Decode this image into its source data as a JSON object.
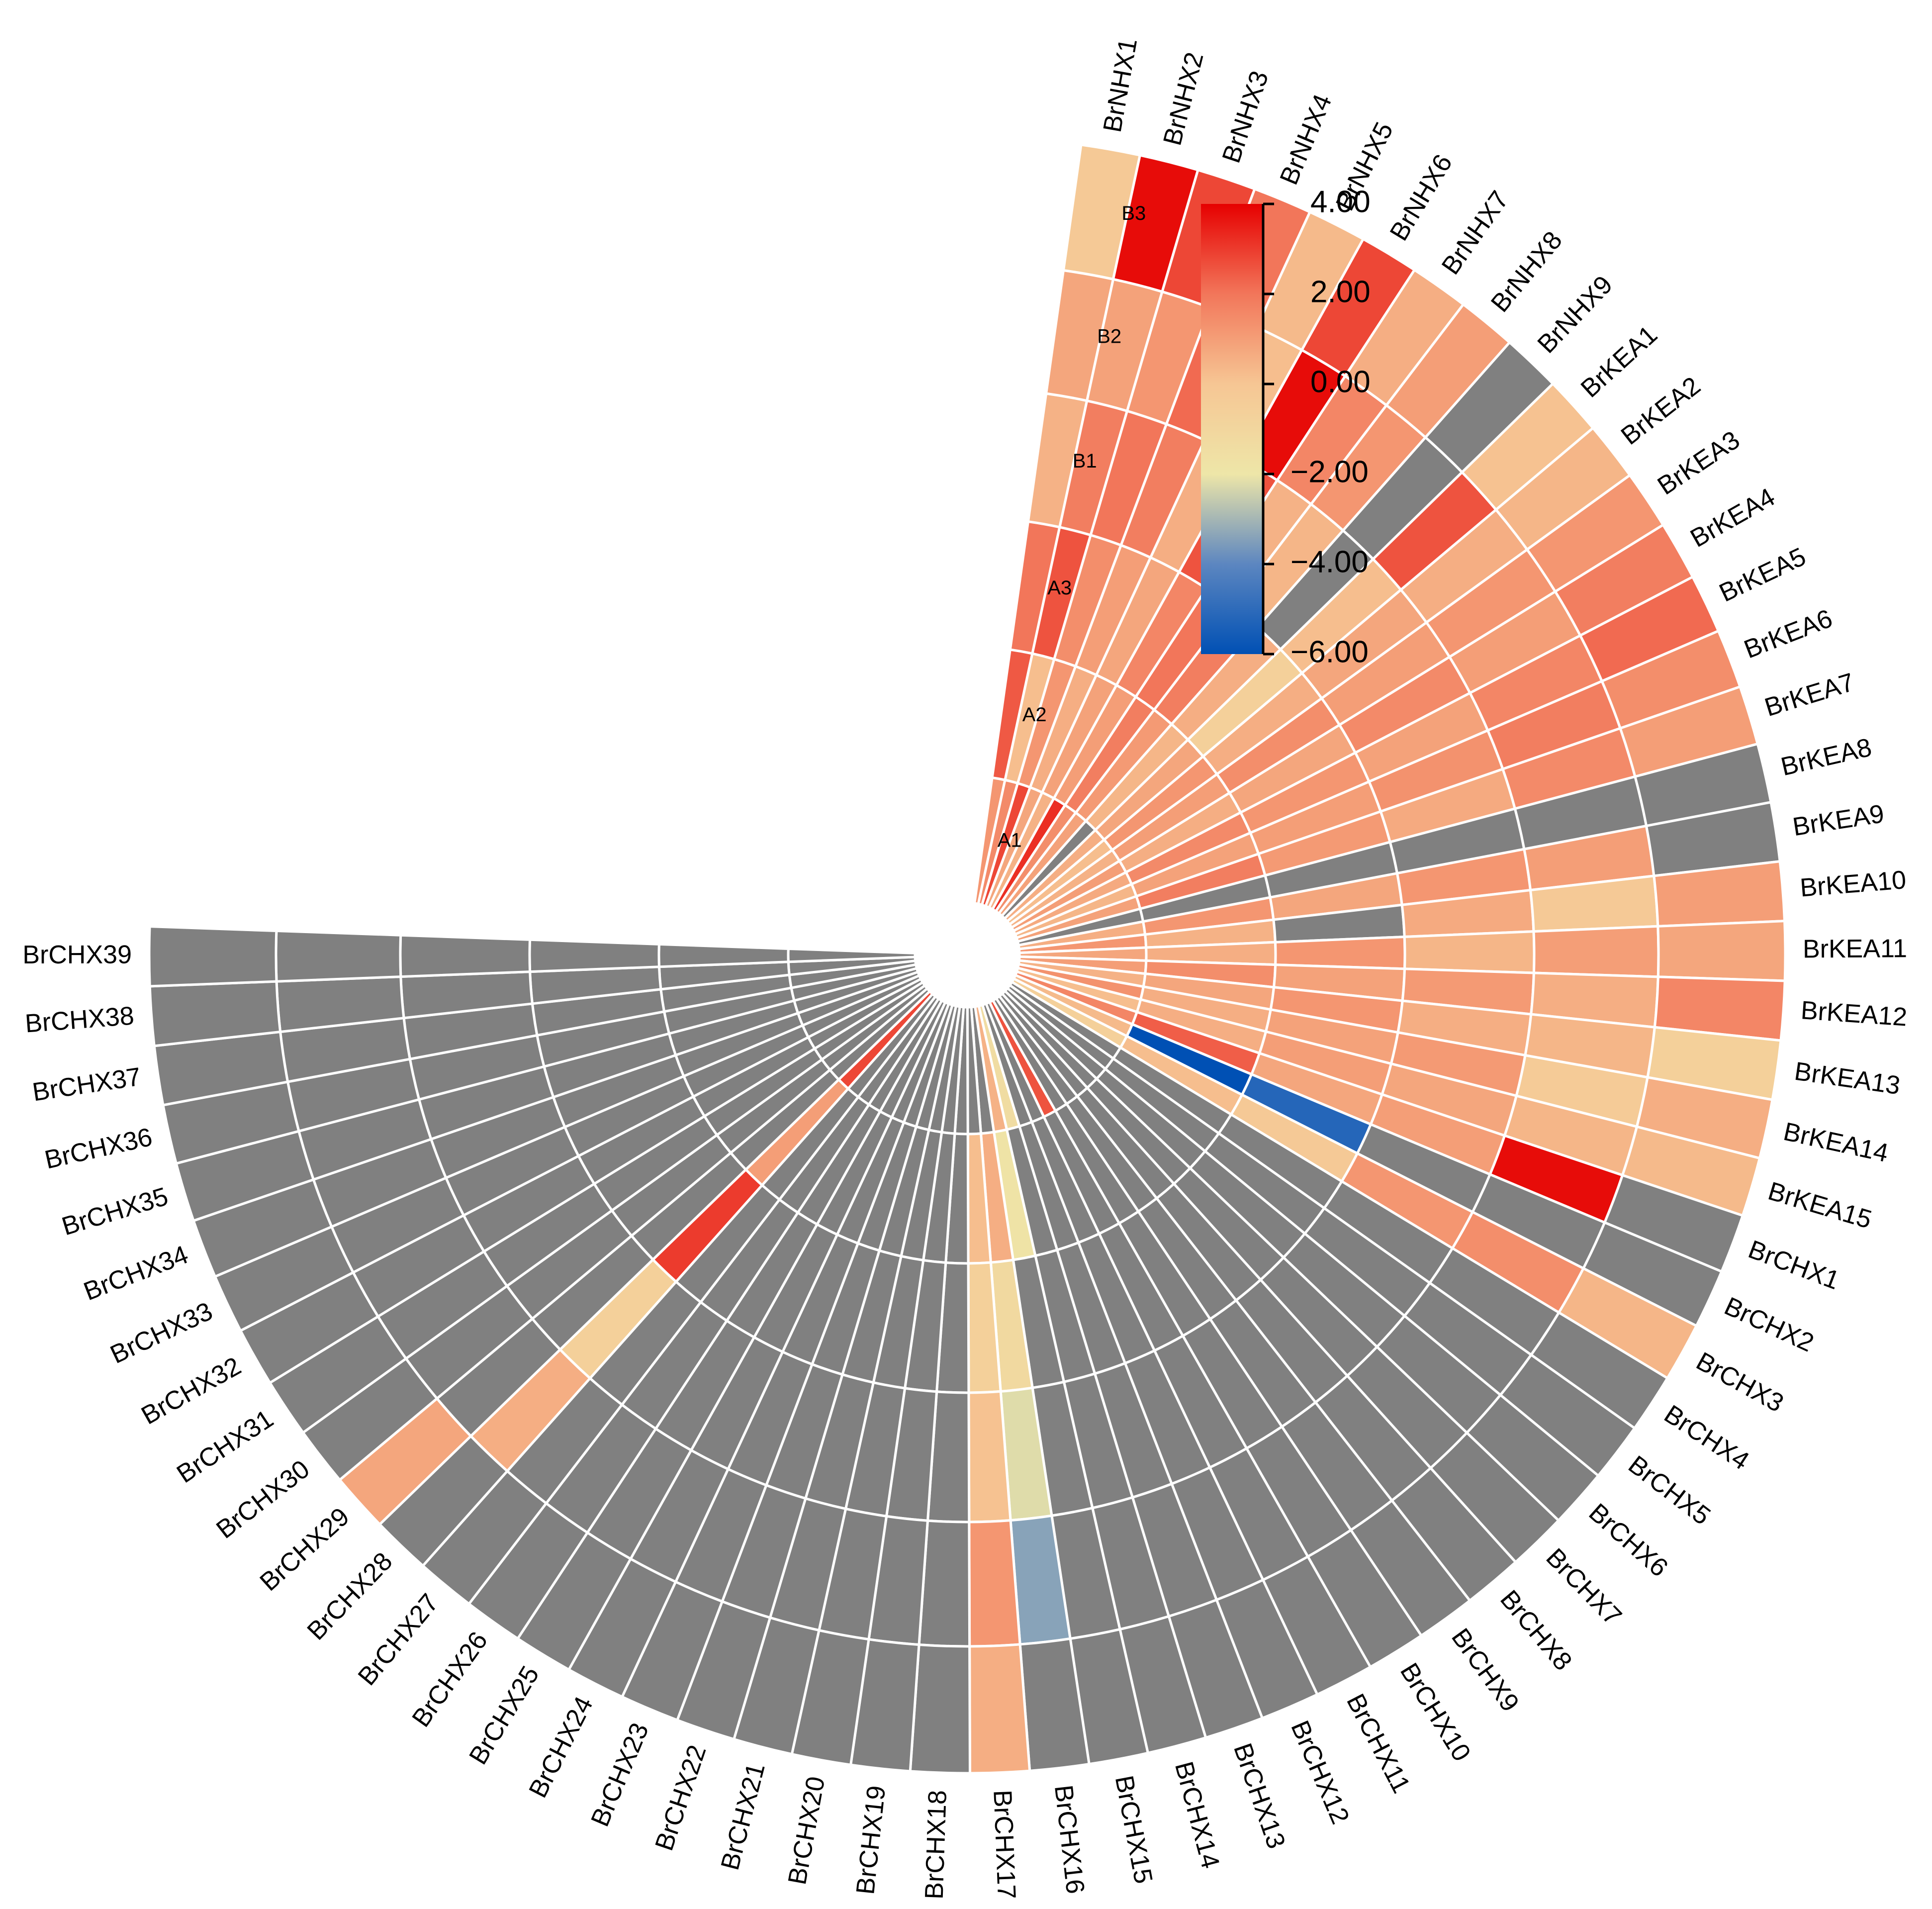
{
  "chart_data": {
    "type": "heatmap",
    "subtype": "circular",
    "title": "",
    "samples": [
      "A1",
      "A2",
      "A3",
      "B1",
      "B2",
      "B3"
    ],
    "genes": [
      "BrNHX1",
      "BrNHX2",
      "BrNHX3",
      "BrNHX4",
      "BrNHX5",
      "BrNHX6",
      "BrNHX7",
      "BrNHX8",
      "BrNHX9",
      "BrKEA1",
      "BrKEA2",
      "BrKEA3",
      "BrKEA4",
      "BrKEA5",
      "BrKEA6",
      "BrKEA7",
      "BrKEA8",
      "BrKEA9",
      "BrKEA10",
      "BrKEA11",
      "BrKEA12",
      "BrKEA13",
      "BrKEA14",
      "BrKEA15",
      "BrCHX1",
      "BrCHX2",
      "BrCHX3",
      "BrCHX4",
      "BrCHX5",
      "BrCHX6",
      "BrCHX7",
      "BrCHX8",
      "BrCHX9",
      "BrCHX10",
      "BrCHX11",
      "BrCHX12",
      "BrCHX13",
      "BrCHX14",
      "BrCHX15",
      "BrCHX16",
      "BrCHX17",
      "BrCHX18",
      "BrCHX19",
      "BrCHX20",
      "BrCHX21",
      "BrCHX22",
      "BrCHX23",
      "BrCHX24",
      "BrCHX25",
      "BrCHX26",
      "BrCHX27",
      "BrCHX28",
      "BrCHX29",
      "BrCHX30",
      "BrCHX31",
      "BrCHX32",
      "BrCHX33",
      "BrCHX34",
      "BrCHX35",
      "BrCHX36",
      "BrCHX37",
      "BrCHX38",
      "BrCHX39"
    ],
    "values_note": "values[g] = [A1, A2, A3, B1, B2, B3]; null = not detected (grey)",
    "values": [
      [
        1.2,
        2.5,
        2.0,
        0.5,
        0.8,
        -0.2
      ],
      [
        1.5,
        0.2,
        2.6,
        1.8,
        0.9,
        3.8
      ],
      [
        2.8,
        1.2,
        1.4,
        2.0,
        1.2,
        2.8
      ],
      [
        0.8,
        0.6,
        1.0,
        1.8,
        2.2,
        2.0
      ],
      [
        0.5,
        0.9,
        0.8,
        0.6,
        0.2,
        0.3
      ],
      [
        3.2,
        1.0,
        1.6,
        2.6,
        3.8,
        2.8
      ],
      [
        1.4,
        1.8,
        2.0,
        0.5,
        1.6,
        0.6
      ],
      [
        0.9,
        1.1,
        1.8,
        0.4,
        1.2,
        1.0
      ],
      [
        null,
        0.4,
        0.6,
        null,
        null,
        null
      ],
      [
        0.6,
        0.8,
        -0.6,
        0.2,
        2.6,
        0.1
      ],
      [
        0.2,
        1.2,
        0.6,
        0.8,
        0.6,
        0.4
      ],
      [
        0.5,
        1.0,
        1.4,
        1.0,
        1.2,
        1.2
      ],
      [
        1.0,
        0.6,
        0.8,
        1.5,
        1.0,
        1.8
      ],
      [
        0.7,
        1.5,
        1.2,
        0.9,
        1.6,
        2.2
      ],
      [
        0.4,
        0.9,
        1.0,
        1.3,
        1.8,
        1.4
      ],
      [
        0.9,
        1.8,
        1.1,
        0.7,
        1.5,
        1.0
      ],
      [
        null,
        null,
        null,
        null,
        null,
        null
      ],
      [
        0.6,
        1.2,
        0.8,
        1.2,
        1.0,
        null
      ],
      [
        1.2,
        0.5,
        null,
        0.7,
        -0.2,
        1.0
      ],
      [
        0.8,
        0.6,
        1.2,
        0.4,
        1.0,
        0.8
      ],
      [
        1.0,
        1.4,
        0.9,
        1.1,
        0.6,
        1.6
      ],
      [
        0.5,
        0.8,
        1.2,
        0.6,
        0.4,
        -0.6
      ],
      [
        1.3,
        0.6,
        0.9,
        1.1,
        -0.3,
        0.6
      ],
      [
        0.2,
        0.6,
        1.0,
        0.8,
        0.4,
        0.3
      ],
      [
        1.6,
        2.4,
        0.8,
        1.0,
        3.8,
        null
      ],
      [
        0.3,
        -6.0,
        -5.2,
        null,
        null,
        null
      ],
      [
        -0.6,
        0.2,
        -0.2,
        1.2,
        1.4,
        0.4
      ],
      [
        null,
        null,
        null,
        null,
        null,
        null
      ],
      [
        null,
        null,
        null,
        null,
        null,
        null
      ],
      [
        null,
        null,
        null,
        null,
        null,
        null
      ],
      [
        null,
        null,
        null,
        null,
        null,
        null
      ],
      [
        null,
        null,
        null,
        null,
        null,
        null
      ],
      [
        null,
        null,
        null,
        null,
        null,
        null
      ],
      [
        null,
        null,
        null,
        null,
        null,
        null
      ],
      [
        2.6,
        null,
        null,
        null,
        null,
        null
      ],
      [
        null,
        null,
        null,
        null,
        null,
        null
      ],
      [
        null,
        null,
        null,
        null,
        null,
        null
      ],
      [
        -1.4,
        null,
        null,
        null,
        null,
        null
      ],
      [
        0.5,
        -1.8,
        null,
        null,
        null,
        null
      ],
      [
        null,
        0.6,
        -1.2,
        -2.2,
        -3.4,
        null
      ],
      [
        null,
        0.2,
        -0.6,
        0.1,
        1.2,
        0.6
      ],
      [
        null,
        null,
        null,
        null,
        null,
        null
      ],
      [
        null,
        null,
        null,
        null,
        null,
        null
      ],
      [
        null,
        null,
        null,
        null,
        null,
        null
      ],
      [
        null,
        null,
        null,
        null,
        null,
        null
      ],
      [
        null,
        null,
        null,
        null,
        null,
        null
      ],
      [
        null,
        null,
        null,
        null,
        null,
        null
      ],
      [
        null,
        null,
        null,
        null,
        null,
        null
      ],
      [
        null,
        null,
        null,
        null,
        null,
        null
      ],
      [
        null,
        null,
        null,
        null,
        null,
        null
      ],
      [
        null,
        null,
        null,
        null,
        null,
        null
      ],
      [
        2.8,
        1.0,
        3.0,
        -0.6,
        0.6,
        null
      ],
      [
        null,
        null,
        null,
        null,
        null,
        0.8
      ],
      [
        null,
        null,
        null,
        null,
        null,
        null
      ],
      [
        null,
        null,
        null,
        null,
        null,
        null
      ],
      [
        null,
        null,
        null,
        null,
        null,
        null
      ],
      [
        null,
        null,
        null,
        null,
        null,
        null
      ],
      [
        null,
        null,
        null,
        null,
        null,
        null
      ],
      [
        null,
        null,
        null,
        null,
        null,
        null
      ],
      [
        null,
        null,
        null,
        null,
        null,
        null
      ],
      [
        null,
        null,
        null,
        null,
        null,
        null
      ],
      [
        null,
        null,
        null,
        null,
        null,
        null
      ],
      [
        null,
        null,
        null,
        null,
        null,
        null
      ]
    ],
    "color_scale": {
      "min": -6.0,
      "max": 4.0,
      "ticks": [
        "4.00",
        "2.00",
        "0.00",
        "−2.00",
        "−4.00",
        "−6.00"
      ],
      "tick_values": [
        4,
        2,
        0,
        -2,
        -4,
        -6
      ],
      "stops": [
        {
          "value": -6.0,
          "color": "#0050b4"
        },
        {
          "value": -4.0,
          "color": "#5c86c0"
        },
        {
          "value": -2.0,
          "color": "#eee6a8"
        },
        {
          "value": 0.0,
          "color": "#f6c694"
        },
        {
          "value": 2.0,
          "color": "#f2765a"
        },
        {
          "value": 4.0,
          "color": "#e60000"
        }
      ]
    },
    "missing_color": "#808080",
    "grid_color": "#ffffff"
  }
}
